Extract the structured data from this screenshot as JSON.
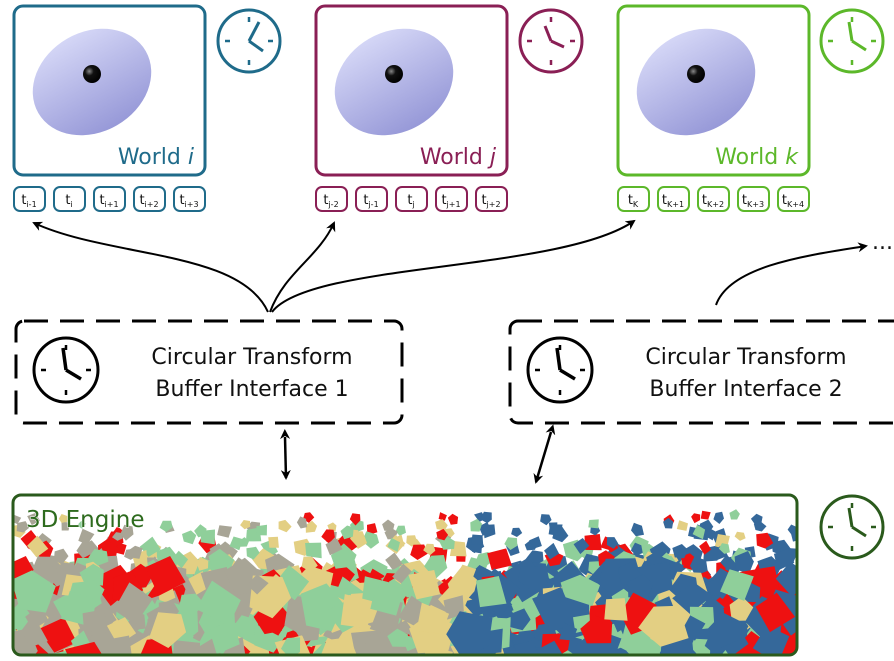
{
  "worlds": [
    {
      "label": "World",
      "index": "i",
      "color": "#1f6b8a",
      "timestamps": [
        {
          "base": "t",
          "sub": "i-1"
        },
        {
          "base": "t",
          "sub": "i"
        },
        {
          "base": "t",
          "sub": "i+1"
        },
        {
          "base": "t",
          "sub": "i+2"
        },
        {
          "base": "t",
          "sub": "i+3"
        }
      ]
    },
    {
      "label": "World",
      "index": "j",
      "color": "#8a1f55",
      "timestamps": [
        {
          "base": "t",
          "sub": "j-2"
        },
        {
          "base": "t",
          "sub": "j-1"
        },
        {
          "base": "t",
          "sub": "j"
        },
        {
          "base": "t",
          "sub": "j+1"
        },
        {
          "base": "t",
          "sub": "j+2"
        }
      ]
    },
    {
      "label": "World",
      "index": "k",
      "color": "#5cb82a",
      "timestamps": [
        {
          "base": "t",
          "sub": "K"
        },
        {
          "base": "t",
          "sub": "K+1"
        },
        {
          "base": "t",
          "sub": "K+2"
        },
        {
          "base": "t",
          "sub": "K+3"
        },
        {
          "base": "t",
          "sub": "K+4"
        }
      ]
    }
  ],
  "ellipsis": "...",
  "interfaces": [
    {
      "line1": "Circular Transform",
      "line2": "Buffer Interface 1"
    },
    {
      "line1": "Circular Transform",
      "line2": "Buffer Interface 2"
    }
  ],
  "engine": {
    "label": "3D Engine",
    "color": "#2a5a1c"
  },
  "icons": [
    "clock-icon",
    "planet-icon",
    "double-arrow-icon"
  ]
}
